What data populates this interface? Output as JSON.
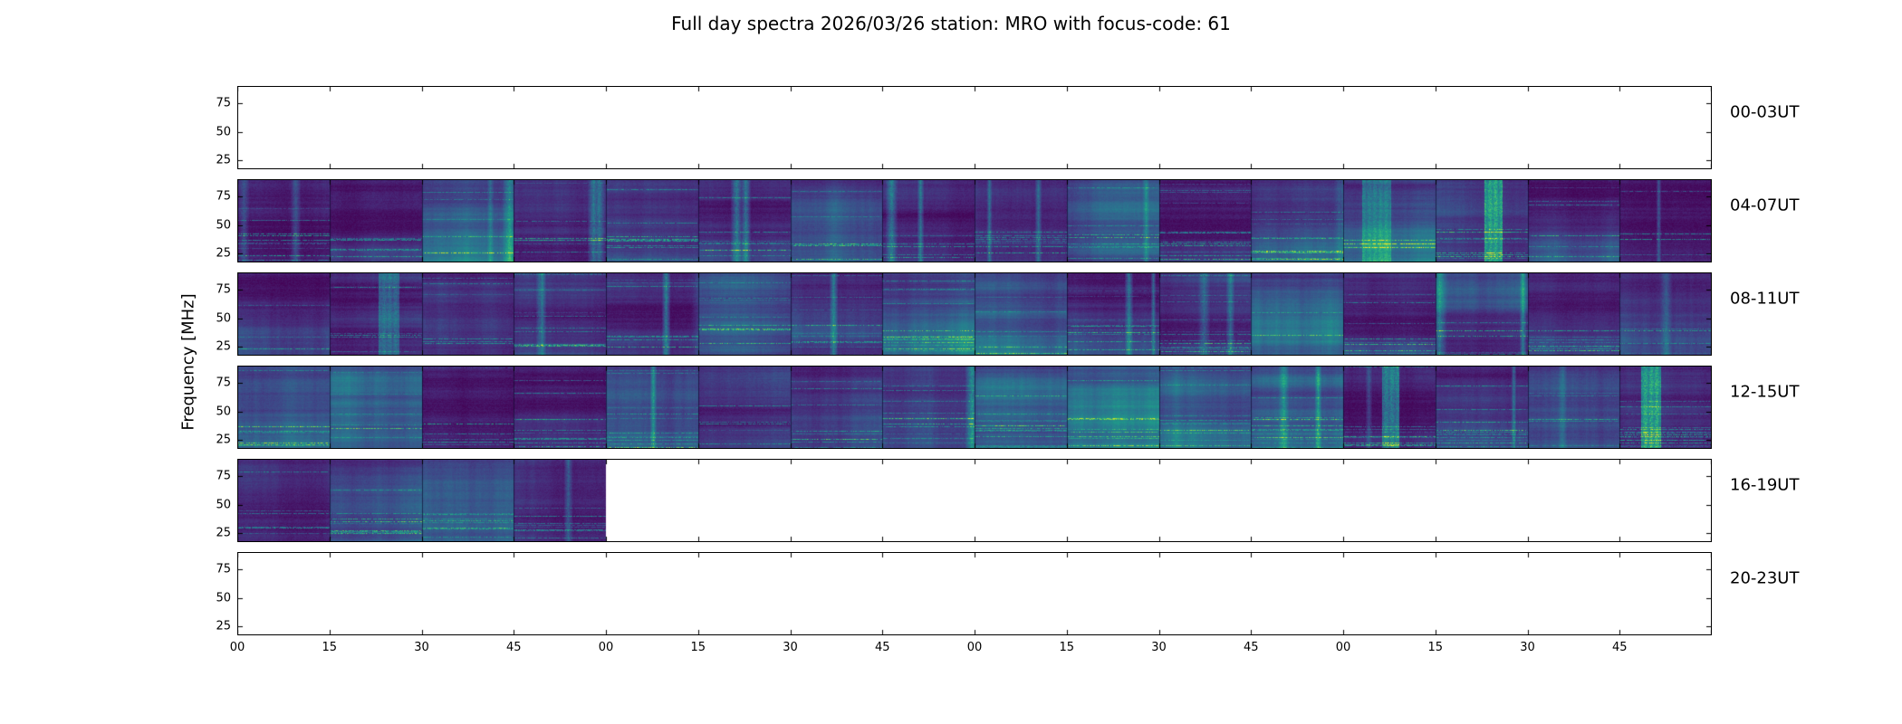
{
  "chart_data": {
    "type": "heatmap",
    "title": "Full day spectra 2026/03/26 station: MRO with focus-code: 61",
    "date": "2026/03/26",
    "station": "MRO",
    "focus_code": "61",
    "ylabel": "Frequency [MHz]",
    "y_tick_labels": [
      "75",
      "50",
      "25"
    ],
    "x_tick_labels": [
      "00",
      "15",
      "30",
      "45",
      "00",
      "15",
      "30",
      "45",
      "00",
      "15",
      "30",
      "45",
      "00",
      "15",
      "30",
      "45"
    ],
    "segments_per_row": 16,
    "colormap": "viridis",
    "legend": "none",
    "rows": [
      {
        "label": "00-03UT",
        "filled_segments": 0
      },
      {
        "label": "04-07UT",
        "filled_segments": 16
      },
      {
        "label": "08-11UT",
        "filled_segments": 16
      },
      {
        "label": "12-15UT",
        "filled_segments": 16
      },
      {
        "label": "16-19UT",
        "filled_segments": 4
      },
      {
        "label": "20-23UT",
        "filled_segments": 0
      }
    ]
  }
}
